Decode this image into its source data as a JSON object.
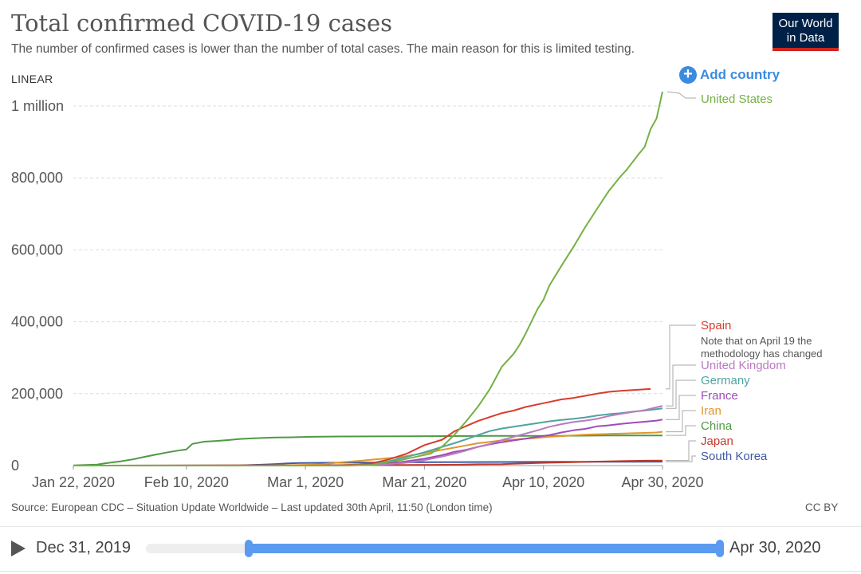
{
  "header": {
    "title": "Total confirmed COVID-19 cases",
    "subtitle": "The number of confirmed cases is lower than the number of total cases. The main reason for this is limited testing.",
    "logo_line1": "Our World",
    "logo_line2": "in Data"
  },
  "controls": {
    "scale": "LINEAR",
    "add_country": "Add country"
  },
  "footer": {
    "source": "Source: European CDC – Situation Update Worldwide – Last updated 30th April, 11:50 (London time)",
    "license": "CC BY"
  },
  "timeline": {
    "start": "Dec 31, 2019",
    "end": "Apr 30, 2020"
  },
  "chart_data": {
    "type": "line",
    "title": "Total confirmed COVID-19 cases",
    "x_axis": {
      "unit": "days since Jan 22, 2020",
      "range": [
        0,
        99
      ],
      "ticks": [
        {
          "day": 0,
          "label": "Jan 22, 2020"
        },
        {
          "day": 19,
          "label": "Feb 10, 2020"
        },
        {
          "day": 39,
          "label": "Mar 1, 2020"
        },
        {
          "day": 59,
          "label": "Mar 21, 2020"
        },
        {
          "day": 79,
          "label": "Apr 10, 2020"
        },
        {
          "day": 99,
          "label": "Apr 30, 2020"
        }
      ]
    },
    "y_axis": {
      "range": [
        0,
        1000000
      ],
      "ticks": [
        {
          "value": 0,
          "label": "0"
        },
        {
          "value": 200000,
          "label": "200,000"
        },
        {
          "value": 400000,
          "label": "400,000"
        },
        {
          "value": 600000,
          "label": "600,000"
        },
        {
          "value": 800000,
          "label": "800,000"
        },
        {
          "value": 1000000,
          "label": "1 million"
        }
      ],
      "grid": true
    },
    "series": [
      {
        "name": "United States",
        "color": "#75b044",
        "label_level": 0,
        "points": [
          [
            0,
            1
          ],
          [
            35,
            60
          ],
          [
            45,
            200
          ],
          [
            50,
            1600
          ],
          [
            55,
            15000
          ],
          [
            58,
            26000
          ],
          [
            60,
            33000
          ],
          [
            62,
            53000
          ],
          [
            64,
            85000
          ],
          [
            66,
            123000
          ],
          [
            68,
            164000
          ],
          [
            70,
            213000
          ],
          [
            72,
            275000
          ],
          [
            74,
            311000
          ],
          [
            75,
            336000
          ],
          [
            76,
            367000
          ],
          [
            78,
            435000
          ],
          [
            79,
            461000
          ],
          [
            80,
            501000
          ],
          [
            82,
            555000
          ],
          [
            84,
            607000
          ],
          [
            86,
            663000
          ],
          [
            88,
            714000
          ],
          [
            90,
            764000
          ],
          [
            92,
            805000
          ],
          [
            93,
            823000
          ],
          [
            95,
            866000
          ],
          [
            96,
            886000
          ],
          [
            97,
            936000
          ],
          [
            98,
            965000
          ],
          [
            99,
            1040000
          ]
        ]
      },
      {
        "name": "Spain",
        "color": "#d73c2c",
        "label_level": 1,
        "points": [
          [
            0,
            0
          ],
          [
            40,
            0
          ],
          [
            44,
            500
          ],
          [
            48,
            3000
          ],
          [
            50,
            6000
          ],
          [
            53,
            17000
          ],
          [
            56,
            33000
          ],
          [
            59,
            57000
          ],
          [
            62,
            72000
          ],
          [
            64,
            95000
          ],
          [
            66,
            110000
          ],
          [
            68,
            124000
          ],
          [
            70,
            135000
          ],
          [
            72,
            146000
          ],
          [
            74,
            153000
          ],
          [
            76,
            163000
          ],
          [
            78,
            170000
          ],
          [
            80,
            177000
          ],
          [
            82,
            184000
          ],
          [
            84,
            188000
          ],
          [
            86,
            194000
          ],
          [
            88,
            200000
          ],
          [
            90,
            205000
          ],
          [
            92,
            208000
          ],
          [
            94,
            210000
          ],
          [
            97,
            213000
          ]
        ]
      },
      {
        "name": "United Kingdom",
        "color": "#b97ac0",
        "label_level": 2,
        "points": [
          [
            0,
            0
          ],
          [
            40,
            0
          ],
          [
            45,
            200
          ],
          [
            50,
            1500
          ],
          [
            53,
            4000
          ],
          [
            56,
            8000
          ],
          [
            59,
            15000
          ],
          [
            62,
            25000
          ],
          [
            64,
            33000
          ],
          [
            66,
            42000
          ],
          [
            68,
            52000
          ],
          [
            70,
            60000
          ],
          [
            72,
            71000
          ],
          [
            74,
            80000
          ],
          [
            76,
            89000
          ],
          [
            78,
            98000
          ],
          [
            80,
            108000
          ],
          [
            82,
            115000
          ],
          [
            84,
            121000
          ],
          [
            86,
            125000
          ],
          [
            88,
            130000
          ],
          [
            90,
            138000
          ],
          [
            92,
            144000
          ],
          [
            94,
            149000
          ],
          [
            96,
            154000
          ],
          [
            98,
            162000
          ],
          [
            99,
            166000
          ]
        ]
      },
      {
        "name": "Germany",
        "color": "#4fa3a0",
        "label_level": 3,
        "points": [
          [
            0,
            0
          ],
          [
            40,
            0
          ],
          [
            44,
            300
          ],
          [
            48,
            2000
          ],
          [
            50,
            5000
          ],
          [
            53,
            12000
          ],
          [
            56,
            24000
          ],
          [
            59,
            37000
          ],
          [
            62,
            52000
          ],
          [
            64,
            62000
          ],
          [
            66,
            73000
          ],
          [
            68,
            85000
          ],
          [
            70,
            96000
          ],
          [
            72,
            103000
          ],
          [
            74,
            108000
          ],
          [
            76,
            113000
          ],
          [
            78,
            118000
          ],
          [
            80,
            123000
          ],
          [
            82,
            127000
          ],
          [
            84,
            130000
          ],
          [
            86,
            134000
          ],
          [
            88,
            139000
          ],
          [
            90,
            143000
          ],
          [
            92,
            146000
          ],
          [
            94,
            150000
          ],
          [
            96,
            153000
          ],
          [
            98,
            157000
          ],
          [
            99,
            159000
          ]
        ]
      },
      {
        "name": "France",
        "color": "#9e4bb8",
        "label_level": 4,
        "points": [
          [
            0,
            0
          ],
          [
            40,
            0
          ],
          [
            45,
            300
          ],
          [
            50,
            2000
          ],
          [
            53,
            5000
          ],
          [
            56,
            12000
          ],
          [
            59,
            19000
          ],
          [
            62,
            29000
          ],
          [
            64,
            38000
          ],
          [
            66,
            44000
          ],
          [
            68,
            52000
          ],
          [
            70,
            59000
          ],
          [
            72,
            65000
          ],
          [
            74,
            70000
          ],
          [
            76,
            75000
          ],
          [
            78,
            80000
          ],
          [
            80,
            85000
          ],
          [
            82,
            92000
          ],
          [
            84,
            98000
          ],
          [
            86,
            102000
          ],
          [
            88,
            109000
          ],
          [
            90,
            112000
          ],
          [
            92,
            116000
          ],
          [
            94,
            119000
          ],
          [
            96,
            122000
          ],
          [
            98,
            125000
          ],
          [
            99,
            128000
          ]
        ]
      },
      {
        "name": "Iran",
        "color": "#e0962c",
        "label_level": 5,
        "points": [
          [
            0,
            0
          ],
          [
            28,
            0
          ],
          [
            32,
            100
          ],
          [
            36,
            1000
          ],
          [
            39,
            2000
          ],
          [
            42,
            4000
          ],
          [
            45,
            9000
          ],
          [
            48,
            13000
          ],
          [
            50,
            16000
          ],
          [
            52,
            19000
          ],
          [
            55,
            24000
          ],
          [
            58,
            32000
          ],
          [
            60,
            38000
          ],
          [
            62,
            44000
          ],
          [
            64,
            50000
          ],
          [
            66,
            56000
          ],
          [
            68,
            62000
          ],
          [
            70,
            66000
          ],
          [
            72,
            70000
          ],
          [
            74,
            72000
          ],
          [
            76,
            75000
          ],
          [
            78,
            77000
          ],
          [
            80,
            80000
          ],
          [
            82,
            82000
          ],
          [
            84,
            84000
          ],
          [
            86,
            86000
          ],
          [
            88,
            87000
          ],
          [
            90,
            88000
          ],
          [
            92,
            89000
          ],
          [
            94,
            90000
          ],
          [
            96,
            91000
          ],
          [
            98,
            92000
          ],
          [
            99,
            94000
          ]
        ]
      },
      {
        "name": "China",
        "color": "#4e9a43",
        "label_level": 6,
        "points": [
          [
            0,
            500
          ],
          [
            4,
            2800
          ],
          [
            6,
            7700
          ],
          [
            8,
            11900
          ],
          [
            10,
            17200
          ],
          [
            12,
            24300
          ],
          [
            14,
            31000
          ],
          [
            16,
            37200
          ],
          [
            18,
            42700
          ],
          [
            19,
            45000
          ],
          [
            20,
            60300
          ],
          [
            22,
            66500
          ],
          [
            24,
            68500
          ],
          [
            26,
            71000
          ],
          [
            28,
            74000
          ],
          [
            30,
            75500
          ],
          [
            32,
            77000
          ],
          [
            34,
            78000
          ],
          [
            36,
            78600
          ],
          [
            38,
            79300
          ],
          [
            40,
            80000
          ],
          [
            45,
            80900
          ],
          [
            50,
            81100
          ],
          [
            60,
            81800
          ],
          [
            70,
            82500
          ],
          [
            80,
            82800
          ],
          [
            90,
            83700
          ],
          [
            99,
            83900
          ]
        ]
      },
      {
        "name": "Japan",
        "color": "#c0392b",
        "label_level": 7,
        "points": [
          [
            0,
            0
          ],
          [
            55,
            1500
          ],
          [
            60,
            2000
          ],
          [
            65,
            2500
          ],
          [
            68,
            3500
          ],
          [
            72,
            4000
          ],
          [
            76,
            6000
          ],
          [
            78,
            7000
          ],
          [
            80,
            8000
          ],
          [
            84,
            9500
          ],
          [
            88,
            11000
          ],
          [
            92,
            12500
          ],
          [
            96,
            13500
          ],
          [
            99,
            14000
          ]
        ]
      },
      {
        "name": "South Korea",
        "color": "#3d5aa6",
        "label_level": 8,
        "points": [
          [
            0,
            0
          ],
          [
            28,
            500
          ],
          [
            30,
            1500
          ],
          [
            32,
            2900
          ],
          [
            34,
            4300
          ],
          [
            36,
            6000
          ],
          [
            38,
            7100
          ],
          [
            40,
            7500
          ],
          [
            44,
            8000
          ],
          [
            48,
            8300
          ],
          [
            52,
            8700
          ],
          [
            56,
            9000
          ],
          [
            60,
            9300
          ],
          [
            66,
            9700
          ],
          [
            72,
            10000
          ],
          [
            80,
            10400
          ],
          [
            90,
            10600
          ],
          [
            99,
            10800
          ]
        ]
      }
    ],
    "annotations": [
      {
        "series": "Spain",
        "text": "Note that on April 19 the",
        "line": 1
      },
      {
        "series": "Spain",
        "text": "methodology has changed",
        "line": 2
      }
    ]
  }
}
